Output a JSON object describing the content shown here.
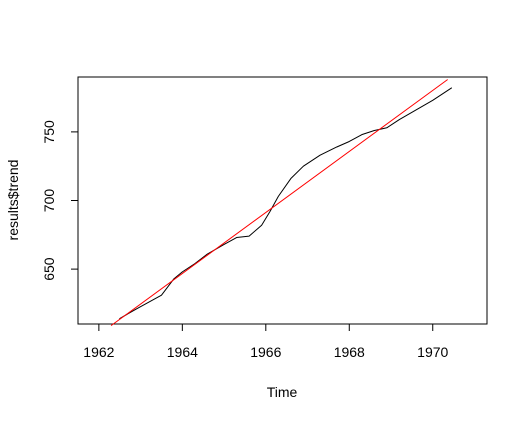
{
  "chart_data": {
    "type": "line",
    "title": "",
    "xlabel": "Time",
    "ylabel": "results$trend",
    "xlim": [
      1961.5,
      1971.3
    ],
    "ylim": [
      610,
      790
    ],
    "grid": false,
    "legend": "none",
    "x_ticks": [
      1962,
      1964,
      1966,
      1968,
      1970
    ],
    "x_tick_labels": [
      "1962",
      "1964",
      "1966",
      "1968",
      "1970"
    ],
    "y_ticks": [
      650,
      700,
      750
    ],
    "y_tick_labels": [
      "650",
      "700",
      "750"
    ],
    "series": [
      {
        "color": "#000000",
        "x": [
          1962.5,
          1962.9,
          1963.2,
          1963.5,
          1963.8,
          1964.0,
          1964.3,
          1964.6,
          1965.0,
          1965.3,
          1965.6,
          1965.9,
          1966.1,
          1966.3,
          1966.6,
          1966.9,
          1967.3,
          1967.7,
          1968.0,
          1968.3,
          1968.6,
          1968.9,
          1969.2,
          1969.6,
          1970.0,
          1970.3,
          1970.45
        ],
        "y": [
          614,
          621,
          626,
          631,
          643,
          648,
          654,
          661,
          668,
          673,
          674,
          682,
          692,
          703,
          716,
          725,
          733,
          739,
          743,
          748,
          751,
          753,
          759,
          766,
          773,
          779,
          782
        ]
      },
      {
        "color": "#ff0000",
        "x": [
          1962.3,
          1970.35
        ],
        "y": [
          609,
          788
        ]
      }
    ]
  }
}
